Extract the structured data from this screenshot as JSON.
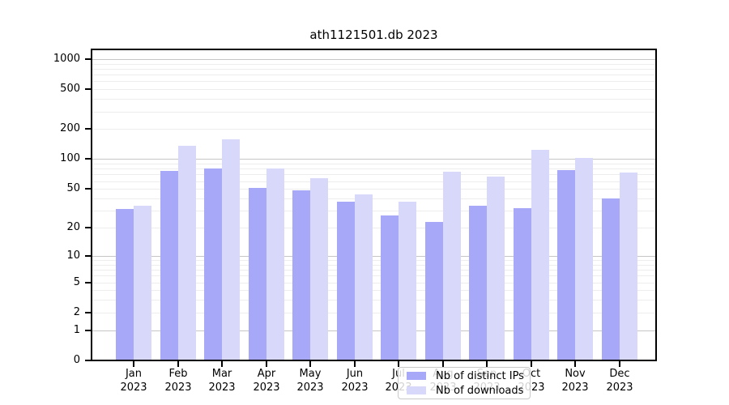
{
  "chart_data": {
    "type": "bar",
    "title": "ath1121501.db 2023",
    "categories": [
      "Jan",
      "Feb",
      "Mar",
      "Apr",
      "May",
      "Jun",
      "Jul",
      "Aug",
      "Sep",
      "Oct",
      "Nov",
      "Dec"
    ],
    "xtick_year": "2023",
    "series": [
      {
        "name": "Nb of distinct IPs",
        "color": "#a8a8f8",
        "values": [
          31,
          76,
          80,
          51,
          48,
          37,
          27,
          23,
          34,
          32,
          78,
          40
        ]
      },
      {
        "name": "Nb of downloads",
        "color": "#d8d8fa",
        "values": [
          34,
          137,
          157,
          80,
          64,
          44,
          37,
          75,
          67,
          125,
          102,
          73
        ]
      }
    ],
    "yticks": [
      0,
      1,
      2,
      5,
      10,
      20,
      50,
      100,
      200,
      500,
      1000
    ],
    "ylim": [
      0,
      1230
    ],
    "yscale": "log1p",
    "grid": {
      "major_color": "#c6c6c6",
      "minor_color": "#ededed"
    },
    "legend_position": "lower-center",
    "axis_color": "#000000",
    "background_color": "#ffffff"
  }
}
